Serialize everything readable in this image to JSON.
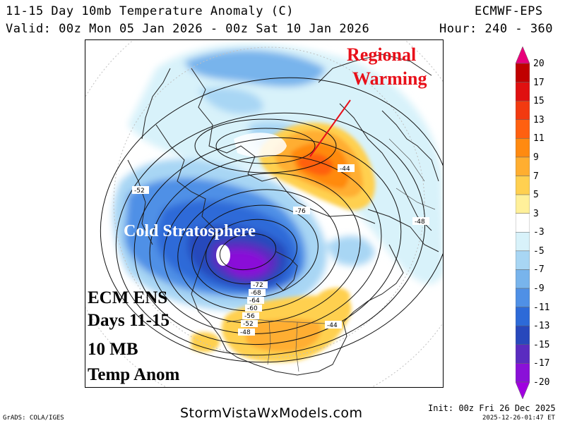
{
  "header": {
    "title": "11-15 Day 10mb Temperature Anomaly (C)",
    "model": "ECMWF-EPS",
    "valid": "Valid: 00z Mon 05 Jan 2026 - 00z Sat 10 Jan 2026",
    "hour": "Hour: 240 - 360"
  },
  "annotations": {
    "regional_warming_line1": "Regional",
    "regional_warming_line2": "Warming",
    "cold_stratosphere": "Cold Stratosphere",
    "ecm_block": [
      "ECM ENS",
      "Days 11-15",
      "10 MB",
      "Temp Anom"
    ]
  },
  "contour_labels": [
    "-44",
    "-52",
    "-76",
    "-48",
    "-72",
    "-68",
    "-64",
    "-60",
    "-56",
    "-52",
    "-48",
    "-44"
  ],
  "colorbar": {
    "labels": [
      "20",
      "17",
      "15",
      "13",
      "11",
      "9",
      "7",
      "5",
      "3",
      "-3",
      "-5",
      "-7",
      "-9",
      "-11",
      "-13",
      "-15",
      "-17",
      "-20"
    ],
    "colors": [
      "#e8007a",
      "#c00000",
      "#e01010",
      "#f23a10",
      "#ff6010",
      "#ff8a10",
      "#ffae30",
      "#ffd050",
      "#fff09a",
      "#ffffff",
      "#d8f2fa",
      "#a8d6f4",
      "#78b4ec",
      "#4f90e6",
      "#2d6ad8",
      "#2848bc",
      "#5a2cc0",
      "#8a10d8",
      "#a000e0"
    ]
  },
  "footer": {
    "grads": "GrADS: COLA/IGES",
    "site": "StormVistaWxModels.com",
    "init": "Init: 00z Fri 26 Dec 2025",
    "stamp": "2025-12-26-01:47 ET"
  }
}
